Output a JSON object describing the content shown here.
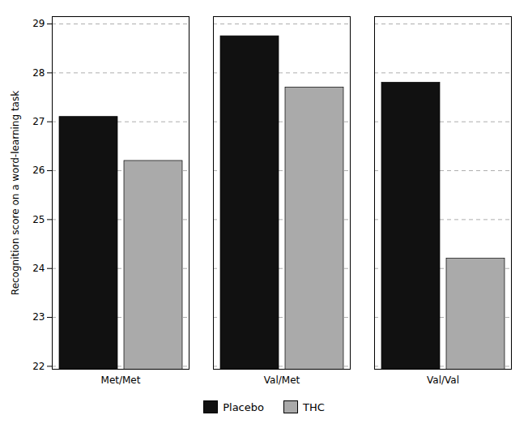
{
  "chart_data": {
    "type": "bar",
    "categories": [
      "Met/Met",
      "Val/Met",
      "Val/Val"
    ],
    "series": [
      {
        "name": "Placebo",
        "color": "#111111",
        "values": [
          27.1,
          28.75,
          27.8
        ]
      },
      {
        "name": "THC",
        "color": "#aaaaaa",
        "values": [
          26.2,
          27.7,
          24.2
        ]
      }
    ],
    "ylabel": "Recognition score on a word-learning task",
    "ylim": [
      21.94,
      29.15
    ],
    "yticks": [
      22,
      23,
      24,
      25,
      26,
      27,
      28,
      29
    ],
    "grid": true,
    "legend": "bottom"
  }
}
